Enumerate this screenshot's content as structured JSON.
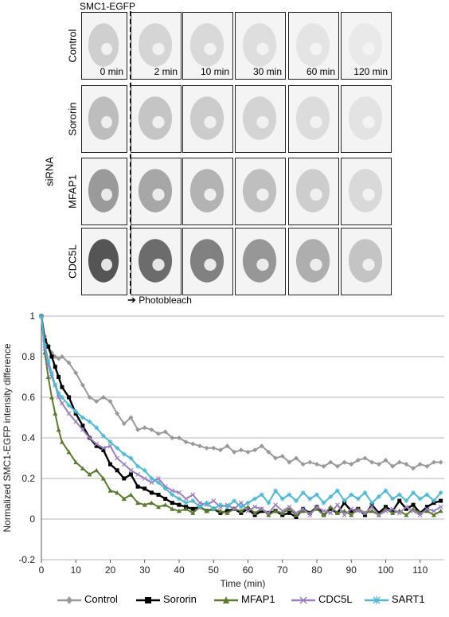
{
  "figure": {
    "top_label": "SMC1-EGFP",
    "side_label": "siRNA",
    "photobleach_label": "Photobleach",
    "photobleach_arrow": "➔",
    "rows": [
      "Control",
      "Sororin",
      "MFAP1",
      "CDC5L"
    ],
    "timepoints": [
      "0 min",
      "2 min",
      "10 min",
      "30 min",
      "60 min",
      "120 min"
    ]
  },
  "chart_data": {
    "type": "line",
    "xlabel": "Time (min)",
    "ylabel": "Normalized SMC1-EGFP intensity difference",
    "xlim": [
      0,
      117
    ],
    "ylim": [
      -0.2,
      1.0
    ],
    "xticks": [
      0,
      10,
      20,
      30,
      40,
      50,
      60,
      70,
      80,
      90,
      100,
      110
    ],
    "yticks": [
      -0.2,
      0,
      0.2,
      0.4,
      0.6,
      0.8,
      1
    ],
    "grid": "horizontal",
    "legend_position": "bottom",
    "series": [
      {
        "name": "Control",
        "color": "#999999",
        "marker": "diamond",
        "x": [
          0,
          1,
          2,
          3,
          4,
          5,
          6,
          8,
          10,
          12,
          14,
          16,
          18,
          20,
          22,
          24,
          26,
          28,
          30,
          32,
          34,
          36,
          38,
          40,
          42,
          44,
          46,
          48,
          50,
          52,
          54,
          56,
          58,
          60,
          62,
          64,
          66,
          68,
          70,
          72,
          74,
          76,
          78,
          80,
          82,
          84,
          86,
          88,
          90,
          92,
          94,
          96,
          98,
          100,
          102,
          104,
          106,
          108,
          110,
          112,
          114,
          116
        ],
        "y": [
          1.0,
          0.9,
          0.85,
          0.82,
          0.8,
          0.79,
          0.8,
          0.77,
          0.72,
          0.66,
          0.6,
          0.58,
          0.6,
          0.58,
          0.52,
          0.47,
          0.5,
          0.44,
          0.45,
          0.44,
          0.42,
          0.43,
          0.4,
          0.4,
          0.38,
          0.37,
          0.36,
          0.35,
          0.35,
          0.34,
          0.36,
          0.33,
          0.34,
          0.33,
          0.34,
          0.36,
          0.33,
          0.3,
          0.31,
          0.28,
          0.3,
          0.27,
          0.28,
          0.27,
          0.26,
          0.28,
          0.26,
          0.28,
          0.27,
          0.29,
          0.3,
          0.28,
          0.27,
          0.29,
          0.26,
          0.28,
          0.27,
          0.25,
          0.27,
          0.26,
          0.28,
          0.28
        ]
      },
      {
        "name": "Sororin",
        "color": "#000000",
        "marker": "square",
        "x": [
          0,
          1,
          2,
          3,
          4,
          5,
          6,
          8,
          10,
          12,
          14,
          16,
          18,
          20,
          22,
          24,
          26,
          28,
          30,
          32,
          34,
          36,
          38,
          40,
          42,
          44,
          46,
          48,
          50,
          52,
          54,
          56,
          58,
          60,
          62,
          64,
          66,
          68,
          70,
          72,
          74,
          76,
          78,
          80,
          82,
          84,
          86,
          88,
          90,
          92,
          94,
          96,
          98,
          100,
          102,
          104,
          106,
          108,
          110,
          112,
          114,
          116
        ],
        "y": [
          1.0,
          0.88,
          0.85,
          0.8,
          0.75,
          0.7,
          0.65,
          0.6,
          0.52,
          0.46,
          0.4,
          0.36,
          0.34,
          0.27,
          0.24,
          0.2,
          0.22,
          0.16,
          0.15,
          0.13,
          0.12,
          0.1,
          0.08,
          0.07,
          0.06,
          0.05,
          0.06,
          0.04,
          0.05,
          0.03,
          0.04,
          0.05,
          0.03,
          0.05,
          0.02,
          0.04,
          0.03,
          0.04,
          0.02,
          0.03,
          0.01,
          0.05,
          0.03,
          0.06,
          0.02,
          0.05,
          0.03,
          0.08,
          0.04,
          0.05,
          0.02,
          0.07,
          0.03,
          0.06,
          0.04,
          0.09,
          0.05,
          0.07,
          0.03,
          0.06,
          0.08,
          0.09
        ]
      },
      {
        "name": "MFAP1",
        "color": "#5a7a2e",
        "marker": "triangle",
        "x": [
          0,
          1,
          2,
          3,
          4,
          5,
          6,
          8,
          10,
          12,
          14,
          16,
          18,
          20,
          22,
          24,
          26,
          28,
          30,
          32,
          34,
          36,
          38,
          40,
          42,
          44,
          46,
          48,
          50,
          52,
          54,
          56,
          58,
          60,
          62,
          64,
          66,
          68,
          70,
          72,
          74,
          76,
          78,
          80,
          82,
          84,
          86,
          88,
          90,
          92,
          94,
          96,
          98,
          100,
          102,
          104,
          106,
          108,
          110,
          112,
          114,
          116
        ],
        "y": [
          1.0,
          0.82,
          0.7,
          0.6,
          0.52,
          0.44,
          0.38,
          0.33,
          0.28,
          0.25,
          0.22,
          0.24,
          0.2,
          0.14,
          0.13,
          0.1,
          0.12,
          0.08,
          0.07,
          0.08,
          0.06,
          0.07,
          0.05,
          0.04,
          0.05,
          0.03,
          0.06,
          0.04,
          0.05,
          0.04,
          0.03,
          0.05,
          0.04,
          0.06,
          0.03,
          0.05,
          0.02,
          0.04,
          0.03,
          0.05,
          0.02,
          0.04,
          0.03,
          0.05,
          0.02,
          0.06,
          0.03,
          0.04,
          0.02,
          0.05,
          0.03,
          0.04,
          0.02,
          0.05,
          0.03,
          0.04,
          0.02,
          0.05,
          0.03,
          0.04,
          0.02,
          0.04
        ]
      },
      {
        "name": "CDC5L",
        "color": "#9d7fc0",
        "marker": "x",
        "x": [
          0,
          1,
          2,
          3,
          4,
          5,
          6,
          8,
          10,
          12,
          14,
          16,
          18,
          20,
          22,
          24,
          26,
          28,
          30,
          32,
          34,
          36,
          38,
          40,
          42,
          44,
          46,
          48,
          50,
          52,
          54,
          56,
          58,
          60,
          62,
          64,
          66,
          68,
          70,
          72,
          74,
          76,
          78,
          80,
          82,
          84,
          86,
          88,
          90,
          92,
          94,
          96,
          98,
          100,
          102,
          104,
          106,
          108,
          110,
          112,
          114,
          116
        ],
        "y": [
          1.0,
          0.84,
          0.76,
          0.7,
          0.66,
          0.6,
          0.57,
          0.52,
          0.48,
          0.44,
          0.4,
          0.37,
          0.35,
          0.36,
          0.3,
          0.27,
          0.24,
          0.22,
          0.2,
          0.18,
          0.2,
          0.16,
          0.14,
          0.13,
          0.1,
          0.12,
          0.08,
          0.07,
          0.09,
          0.06,
          0.07,
          0.05,
          0.08,
          0.04,
          0.06,
          0.05,
          0.03,
          0.07,
          0.04,
          0.06,
          0.03,
          0.05,
          0.02,
          0.06,
          0.04,
          0.03,
          0.07,
          0.02,
          0.05,
          0.04,
          0.03,
          0.06,
          0.02,
          0.04,
          0.05,
          0.03,
          0.06,
          0.04,
          0.02,
          0.05,
          0.04,
          0.06
        ]
      },
      {
        "name": "SART1",
        "color": "#4bb8d6",
        "marker": "star",
        "x": [
          0,
          1,
          2,
          3,
          4,
          5,
          6,
          8,
          10,
          12,
          14,
          16,
          18,
          20,
          22,
          24,
          26,
          28,
          30,
          32,
          34,
          36,
          38,
          40,
          42,
          44,
          46,
          48,
          50,
          52,
          54,
          56,
          58,
          60,
          62,
          64,
          66,
          68,
          70,
          72,
          74,
          76,
          78,
          80,
          82,
          84,
          86,
          88,
          90,
          92,
          94,
          96,
          98,
          100,
          102,
          104,
          106,
          108,
          110,
          112,
          114,
          116
        ],
        "y": [
          1.0,
          0.86,
          0.78,
          0.72,
          0.66,
          0.62,
          0.6,
          0.56,
          0.53,
          0.5,
          0.48,
          0.45,
          0.41,
          0.38,
          0.35,
          0.32,
          0.3,
          0.26,
          0.24,
          0.2,
          0.18,
          0.15,
          0.12,
          0.1,
          0.08,
          0.09,
          0.06,
          0.08,
          0.05,
          0.07,
          0.06,
          0.09,
          0.06,
          0.08,
          0.1,
          0.12,
          0.08,
          0.14,
          0.1,
          0.12,
          0.09,
          0.13,
          0.1,
          0.12,
          0.08,
          0.11,
          0.14,
          0.09,
          0.12,
          0.1,
          0.13,
          0.08,
          0.11,
          0.14,
          0.1,
          0.12,
          0.09,
          0.13,
          0.1,
          0.12,
          0.09,
          0.13
        ]
      }
    ]
  }
}
